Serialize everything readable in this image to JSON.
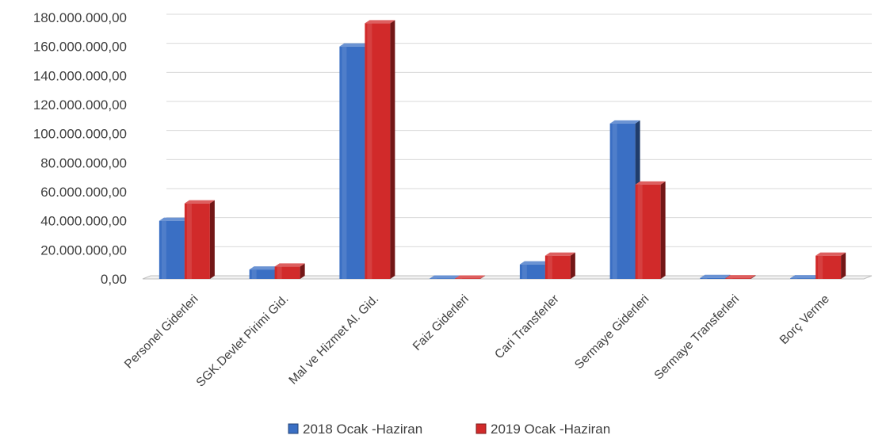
{
  "chart_data": {
    "type": "bar",
    "categories": [
      "Personel Giderleri",
      "SGK.Devlet Pirimi Gid.",
      "Mal ve Hizmet Al. Gid.",
      "Faiz Giderleri",
      "Cari Transferler",
      "Sermaye Giderleri",
      "Sermaye Transferleri",
      "Borç Verme"
    ],
    "series": [
      {
        "name": "2018 Ocak -Haziran",
        "color": "#3a6fc4",
        "values": [
          40000000,
          6500000,
          160000000,
          200000,
          10000000,
          107000000,
          700000,
          500000
        ]
      },
      {
        "name": "2019 Ocak -Haziran",
        "color": "#d12a2a",
        "values": [
          52000000,
          8500000,
          176000000,
          300000,
          16000000,
          65000000,
          500000,
          16000000
        ]
      }
    ],
    "y_ticks": [
      "0,00",
      "20.000.000,00",
      "40.000.000,00",
      "60.000.000,00",
      "80.000.000,00",
      "100.000.000,00",
      "120.000.000,00",
      "140.000.000,00",
      "160.000.000,00",
      "180.000.000,00"
    ],
    "ylim": [
      0,
      180000000
    ],
    "grid": true,
    "legend_position": "bottom",
    "style": "3d-clustered-column"
  }
}
